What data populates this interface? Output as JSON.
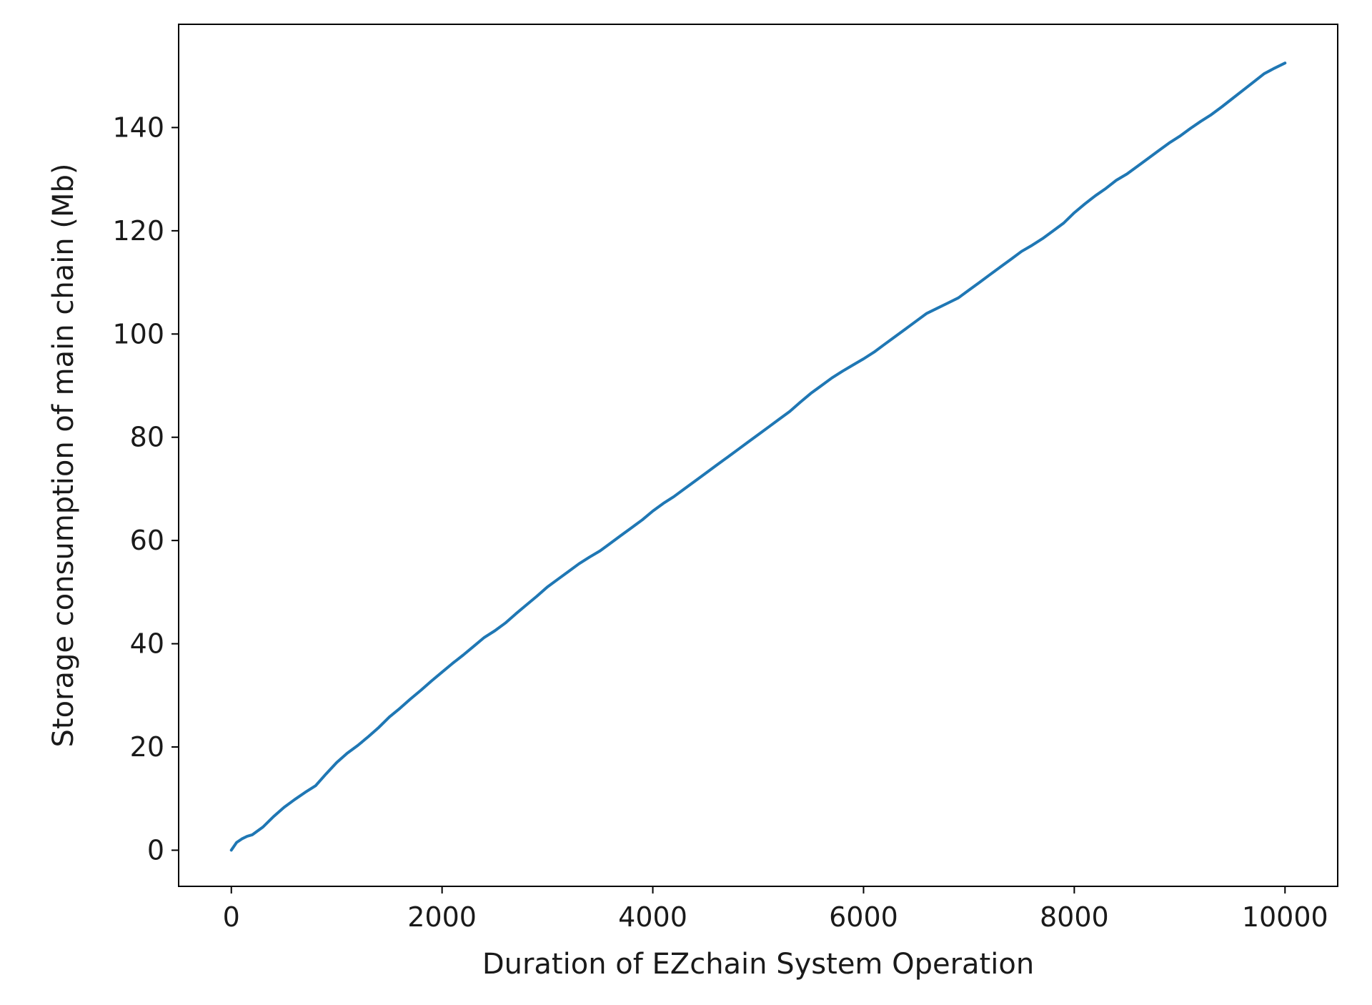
{
  "chart_data": {
    "type": "line",
    "title": "",
    "xlabel": "Duration of EZchain System Operation",
    "ylabel": "Storage consumption of main chain (Mb)",
    "xlim": [
      -500,
      10500
    ],
    "ylim": [
      -7,
      160
    ],
    "xticks": [
      0,
      2000,
      4000,
      6000,
      8000,
      10000
    ],
    "yticks": [
      0,
      20,
      40,
      60,
      80,
      100,
      120,
      140
    ],
    "grid": false,
    "legend": "none",
    "series": [
      {
        "color": "#1f77b4",
        "x": [
          0,
          50,
          100,
          150,
          200,
          300,
          400,
          500,
          600,
          700,
          800,
          900,
          1000,
          1100,
          1200,
          1300,
          1400,
          1500,
          1600,
          1700,
          1800,
          1900,
          2000,
          2100,
          2200,
          2300,
          2400,
          2500,
          2600,
          2700,
          2800,
          2900,
          3000,
          3100,
          3200,
          3300,
          3400,
          3500,
          3600,
          3700,
          3800,
          3900,
          4000,
          4100,
          4200,
          4300,
          4400,
          4500,
          4600,
          4700,
          4800,
          4900,
          5000,
          5100,
          5200,
          5300,
          5400,
          5500,
          5600,
          5700,
          5800,
          5900,
          6000,
          6100,
          6200,
          6300,
          6400,
          6500,
          6600,
          6700,
          6800,
          6900,
          7000,
          7100,
          7200,
          7300,
          7400,
          7500,
          7600,
          7700,
          7800,
          7900,
          8000,
          8100,
          8200,
          8300,
          8400,
          8500,
          8600,
          8700,
          8800,
          8900,
          9000,
          9100,
          9200,
          9300,
          9400,
          9500,
          9600,
          9700,
          9800,
          9900,
          10000
        ],
        "values": [
          0,
          1.5,
          2.2,
          2.7,
          3.0,
          4.5,
          6.5,
          8.3,
          9.8,
          11.2,
          12.5,
          14.8,
          17.0,
          18.8,
          20.3,
          22.0,
          23.8,
          25.8,
          27.5,
          29.3,
          31.0,
          32.8,
          34.5,
          36.2,
          37.8,
          39.5,
          41.2,
          42.5,
          44.0,
          45.8,
          47.5,
          49.2,
          51.0,
          52.5,
          54.0,
          55.5,
          56.8,
          58.0,
          59.5,
          61.0,
          62.5,
          64.0,
          65.7,
          67.2,
          68.5,
          70.0,
          71.5,
          73.0,
          74.5,
          76.0,
          77.5,
          79.0,
          80.5,
          82.0,
          83.5,
          85.0,
          86.8,
          88.5,
          90.0,
          91.5,
          92.8,
          94.0,
          95.2,
          96.5,
          98.0,
          99.5,
          101.0,
          102.5,
          104.0,
          105.0,
          106.0,
          107.0,
          108.5,
          110.0,
          111.5,
          113.0,
          114.5,
          116.0,
          117.2,
          118.5,
          120.0,
          121.5,
          123.5,
          125.2,
          126.8,
          128.2,
          129.8,
          131.0,
          132.5,
          134.0,
          135.5,
          137.0,
          138.3,
          139.8,
          141.2,
          142.5,
          144.0,
          145.6,
          147.2,
          148.8,
          150.4,
          151.5,
          152.5
        ]
      }
    ]
  }
}
